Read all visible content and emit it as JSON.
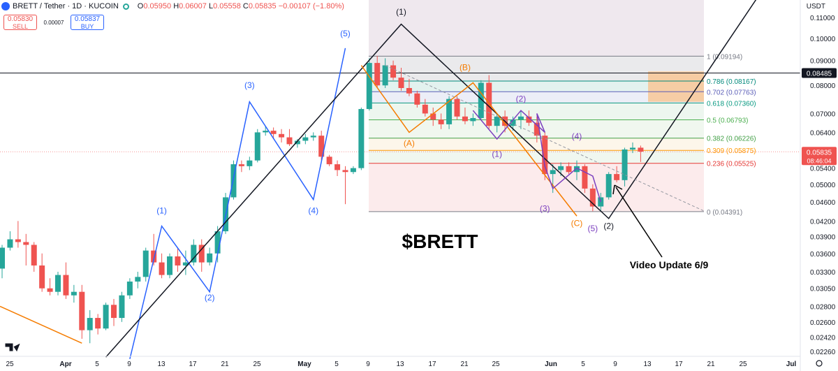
{
  "header": {
    "symbol": "BRETT / Tether · 1D · KUCOIN",
    "open_label": "O",
    "open": "0.05950",
    "high_label": "H",
    "high": "0.06007",
    "low_label": "L",
    "low": "0.05558",
    "close_label": "C",
    "close": "0.05835",
    "change": "−0.00107 (−1.80%)",
    "sell_price": "0.05830",
    "sell_label": "SELL",
    "spread": "0.00007",
    "buy_price": "0.05837",
    "buy_label": "BUY",
    "currency": "USDT"
  },
  "colors": {
    "up": "#26a69a",
    "down": "#ef5350",
    "blue_wave": "#2962ff",
    "purple_wave": "#7b3fbf",
    "orange_wave": "#f57c00"
  },
  "chart_data": {
    "type": "candlestick",
    "title": "$BRETT",
    "y_axis_ticks": [
      "0.11000",
      "0.10000",
      "0.09000",
      "0.08000",
      "0.07000",
      "0.06400",
      "0.05800",
      "0.05400",
      "0.05000",
      "0.04600",
      "0.04200",
      "0.03900",
      "0.03600",
      "0.03300",
      "0.03050",
      "0.02800",
      "0.02600",
      "0.02420",
      "0.02260"
    ],
    "x_axis_labels": [
      "25",
      "Apr",
      "5",
      "9",
      "13",
      "17",
      "21",
      "25",
      "May",
      "5",
      "9",
      "13",
      "17",
      "21",
      "25",
      "Jun",
      "5",
      "9",
      "13",
      "17",
      "21",
      "25",
      "Jul"
    ],
    "candles": [
      {
        "o": 0.0335,
        "h": 0.0375,
        "l": 0.032,
        "c": 0.037
      },
      {
        "o": 0.037,
        "h": 0.04,
        "l": 0.0365,
        "c": 0.0385
      },
      {
        "o": 0.0385,
        "h": 0.042,
        "l": 0.037,
        "c": 0.038
      },
      {
        "o": 0.038,
        "h": 0.0395,
        "l": 0.034,
        "c": 0.0375
      },
      {
        "o": 0.0375,
        "h": 0.038,
        "l": 0.033,
        "c": 0.034
      },
      {
        "o": 0.034,
        "h": 0.036,
        "l": 0.03,
        "c": 0.0305
      },
      {
        "o": 0.0305,
        "h": 0.032,
        "l": 0.0295,
        "c": 0.03
      },
      {
        "o": 0.03,
        "h": 0.033,
        "l": 0.0295,
        "c": 0.0325
      },
      {
        "o": 0.0325,
        "h": 0.0345,
        "l": 0.029,
        "c": 0.0295
      },
      {
        "o": 0.0295,
        "h": 0.031,
        "l": 0.0285,
        "c": 0.03
      },
      {
        "o": 0.03,
        "h": 0.031,
        "l": 0.024,
        "c": 0.025
      },
      {
        "o": 0.025,
        "h": 0.0275,
        "l": 0.0235,
        "c": 0.0265
      },
      {
        "o": 0.0265,
        "h": 0.027,
        "l": 0.0245,
        "c": 0.0252
      },
      {
        "o": 0.0252,
        "h": 0.0285,
        "l": 0.025,
        "c": 0.0282
      },
      {
        "o": 0.0282,
        "h": 0.029,
        "l": 0.0255,
        "c": 0.0265
      },
      {
        "o": 0.0265,
        "h": 0.03,
        "l": 0.026,
        "c": 0.0295
      },
      {
        "o": 0.0295,
        "h": 0.032,
        "l": 0.029,
        "c": 0.0315
      },
      {
        "o": 0.0315,
        "h": 0.033,
        "l": 0.0305,
        "c": 0.0322
      },
      {
        "o": 0.0322,
        "h": 0.037,
        "l": 0.0315,
        "c": 0.0365
      },
      {
        "o": 0.0365,
        "h": 0.0395,
        "l": 0.034,
        "c": 0.0345
      },
      {
        "o": 0.0345,
        "h": 0.036,
        "l": 0.032,
        "c": 0.0325
      },
      {
        "o": 0.0325,
        "h": 0.036,
        "l": 0.032,
        "c": 0.0355
      },
      {
        "o": 0.0355,
        "h": 0.037,
        "l": 0.033,
        "c": 0.034
      },
      {
        "o": 0.034,
        "h": 0.0365,
        "l": 0.0325,
        "c": 0.0345
      },
      {
        "o": 0.0345,
        "h": 0.0385,
        "l": 0.034,
        "c": 0.0375
      },
      {
        "o": 0.0375,
        "h": 0.0385,
        "l": 0.033,
        "c": 0.0345
      },
      {
        "o": 0.0345,
        "h": 0.037,
        "l": 0.034,
        "c": 0.036
      },
      {
        "o": 0.036,
        "h": 0.041,
        "l": 0.0345,
        "c": 0.04
      },
      {
        "o": 0.04,
        "h": 0.048,
        "l": 0.0395,
        "c": 0.047
      },
      {
        "o": 0.047,
        "h": 0.056,
        "l": 0.0465,
        "c": 0.055
      },
      {
        "o": 0.055,
        "h": 0.056,
        "l": 0.053,
        "c": 0.0545
      },
      {
        "o": 0.0545,
        "h": 0.057,
        "l": 0.0535,
        "c": 0.056
      },
      {
        "o": 0.056,
        "h": 0.065,
        "l": 0.0555,
        "c": 0.064
      },
      {
        "o": 0.064,
        "h": 0.066,
        "l": 0.063,
        "c": 0.0645
      },
      {
        "o": 0.0645,
        "h": 0.0655,
        "l": 0.062,
        "c": 0.0635
      },
      {
        "o": 0.0635,
        "h": 0.065,
        "l": 0.061,
        "c": 0.0625
      },
      {
        "o": 0.0625,
        "h": 0.065,
        "l": 0.06,
        "c": 0.0605
      },
      {
        "o": 0.0605,
        "h": 0.062,
        "l": 0.0595,
        "c": 0.0615
      },
      {
        "o": 0.0615,
        "h": 0.0635,
        "l": 0.0605,
        "c": 0.0625
      },
      {
        "o": 0.0625,
        "h": 0.064,
        "l": 0.0615,
        "c": 0.063
      },
      {
        "o": 0.063,
        "h": 0.0645,
        "l": 0.056,
        "c": 0.057
      },
      {
        "o": 0.057,
        "h": 0.0575,
        "l": 0.0545,
        "c": 0.055
      },
      {
        "o": 0.055,
        "h": 0.056,
        "l": 0.052,
        "c": 0.0535
      },
      {
        "o": 0.0535,
        "h": 0.0545,
        "l": 0.0455,
        "c": 0.053
      },
      {
        "o": 0.053,
        "h": 0.0545,
        "l": 0.0525,
        "c": 0.054
      },
      {
        "o": 0.054,
        "h": 0.072,
        "l": 0.0535,
        "c": 0.0715
      },
      {
        "o": 0.0715,
        "h": 0.091,
        "l": 0.071,
        "c": 0.089
      },
      {
        "o": 0.089,
        "h": 0.092,
        "l": 0.079,
        "c": 0.08
      },
      {
        "o": 0.08,
        "h": 0.091,
        "l": 0.079,
        "c": 0.088
      },
      {
        "o": 0.088,
        "h": 0.09,
        "l": 0.082,
        "c": 0.083
      },
      {
        "o": 0.083,
        "h": 0.087,
        "l": 0.078,
        "c": 0.079
      },
      {
        "o": 0.079,
        "h": 0.0825,
        "l": 0.076,
        "c": 0.077
      },
      {
        "o": 0.077,
        "h": 0.078,
        "l": 0.072,
        "c": 0.073
      },
      {
        "o": 0.073,
        "h": 0.075,
        "l": 0.069,
        "c": 0.07
      },
      {
        "o": 0.07,
        "h": 0.072,
        "l": 0.066,
        "c": 0.068
      },
      {
        "o": 0.068,
        "h": 0.07,
        "l": 0.065,
        "c": 0.0665
      },
      {
        "o": 0.0665,
        "h": 0.076,
        "l": 0.065,
        "c": 0.075
      },
      {
        "o": 0.075,
        "h": 0.076,
        "l": 0.068,
        "c": 0.069
      },
      {
        "o": 0.069,
        "h": 0.072,
        "l": 0.0665,
        "c": 0.0675
      },
      {
        "o": 0.0675,
        "h": 0.07,
        "l": 0.066,
        "c": 0.0685
      },
      {
        "o": 0.0685,
        "h": 0.082,
        "l": 0.068,
        "c": 0.081
      },
      {
        "o": 0.081,
        "h": 0.084,
        "l": 0.065,
        "c": 0.066
      },
      {
        "o": 0.066,
        "h": 0.07,
        "l": 0.064,
        "c": 0.069
      },
      {
        "o": 0.069,
        "h": 0.071,
        "l": 0.064,
        "c": 0.066
      },
      {
        "o": 0.066,
        "h": 0.069,
        "l": 0.0645,
        "c": 0.068
      },
      {
        "o": 0.068,
        "h": 0.071,
        "l": 0.065,
        "c": 0.069
      },
      {
        "o": 0.069,
        "h": 0.071,
        "l": 0.066,
        "c": 0.067
      },
      {
        "o": 0.067,
        "h": 0.069,
        "l": 0.061,
        "c": 0.063
      },
      {
        "o": 0.063,
        "h": 0.064,
        "l": 0.051,
        "c": 0.0525
      },
      {
        "o": 0.0525,
        "h": 0.055,
        "l": 0.048,
        "c": 0.0535
      },
      {
        "o": 0.0535,
        "h": 0.0555,
        "l": 0.052,
        "c": 0.0545
      },
      {
        "o": 0.0545,
        "h": 0.0555,
        "l": 0.0525,
        "c": 0.053
      },
      {
        "o": 0.053,
        "h": 0.056,
        "l": 0.051,
        "c": 0.0545
      },
      {
        "o": 0.0545,
        "h": 0.055,
        "l": 0.048,
        "c": 0.049
      },
      {
        "o": 0.049,
        "h": 0.05,
        "l": 0.044,
        "c": 0.045
      },
      {
        "o": 0.045,
        "h": 0.048,
        "l": 0.044,
        "c": 0.047
      },
      {
        "o": 0.047,
        "h": 0.053,
        "l": 0.0465,
        "c": 0.0525
      },
      {
        "o": 0.0525,
        "h": 0.0545,
        "l": 0.0505,
        "c": 0.051
      },
      {
        "o": 0.051,
        "h": 0.0595,
        "l": 0.0495,
        "c": 0.059
      },
      {
        "o": 0.059,
        "h": 0.061,
        "l": 0.058,
        "c": 0.0595
      },
      {
        "o": 0.0595,
        "h": 0.0601,
        "l": 0.0556,
        "c": 0.0584
      }
    ],
    "fib_levels": [
      {
        "label": "1 (0.09194)",
        "value": 0.09194,
        "color": "#787b86"
      },
      {
        "label": "0.786 (0.08167)",
        "value": 0.08167,
        "color": "#00897b"
      },
      {
        "label": "0.702 (0.07763)",
        "value": 0.07763,
        "color": "#5c5fb8"
      },
      {
        "label": "0.618 (0.07360)",
        "value": 0.0736,
        "color": "#089981"
      },
      {
        "label": "0.5 (0.06793)",
        "value": 0.06793,
        "color": "#4caf50"
      },
      {
        "label": "0.382 (0.06226)",
        "value": 0.06226,
        "color": "#43a047"
      },
      {
        "label": "0.309 (0.05875)",
        "value": 0.05875,
        "color": "#ff9800"
      },
      {
        "label": "0.236 (0.05525)",
        "value": 0.05525,
        "color": "#e53935"
      },
      {
        "label": "0 (0.04391)",
        "value": 0.04391,
        "color": "#787b86"
      }
    ],
    "horizontal_line": {
      "value": 0.08485,
      "label": "0.08485"
    },
    "last_price": {
      "value": 0.05835,
      "label": "0.05835",
      "countdown": "08:46:04"
    },
    "wave_labels": {
      "blue": [
        "(1)",
        "(2)",
        "(3)",
        "(4)",
        "(5)"
      ],
      "orange": [
        "(A)",
        "(B)",
        "(C)"
      ],
      "purple": [
        "(1)",
        "(2)",
        "(3)",
        "(4)",
        "(5)"
      ],
      "black": [
        "(1)",
        "(2)"
      ]
    },
    "annotation": "Video Update 6/9"
  }
}
